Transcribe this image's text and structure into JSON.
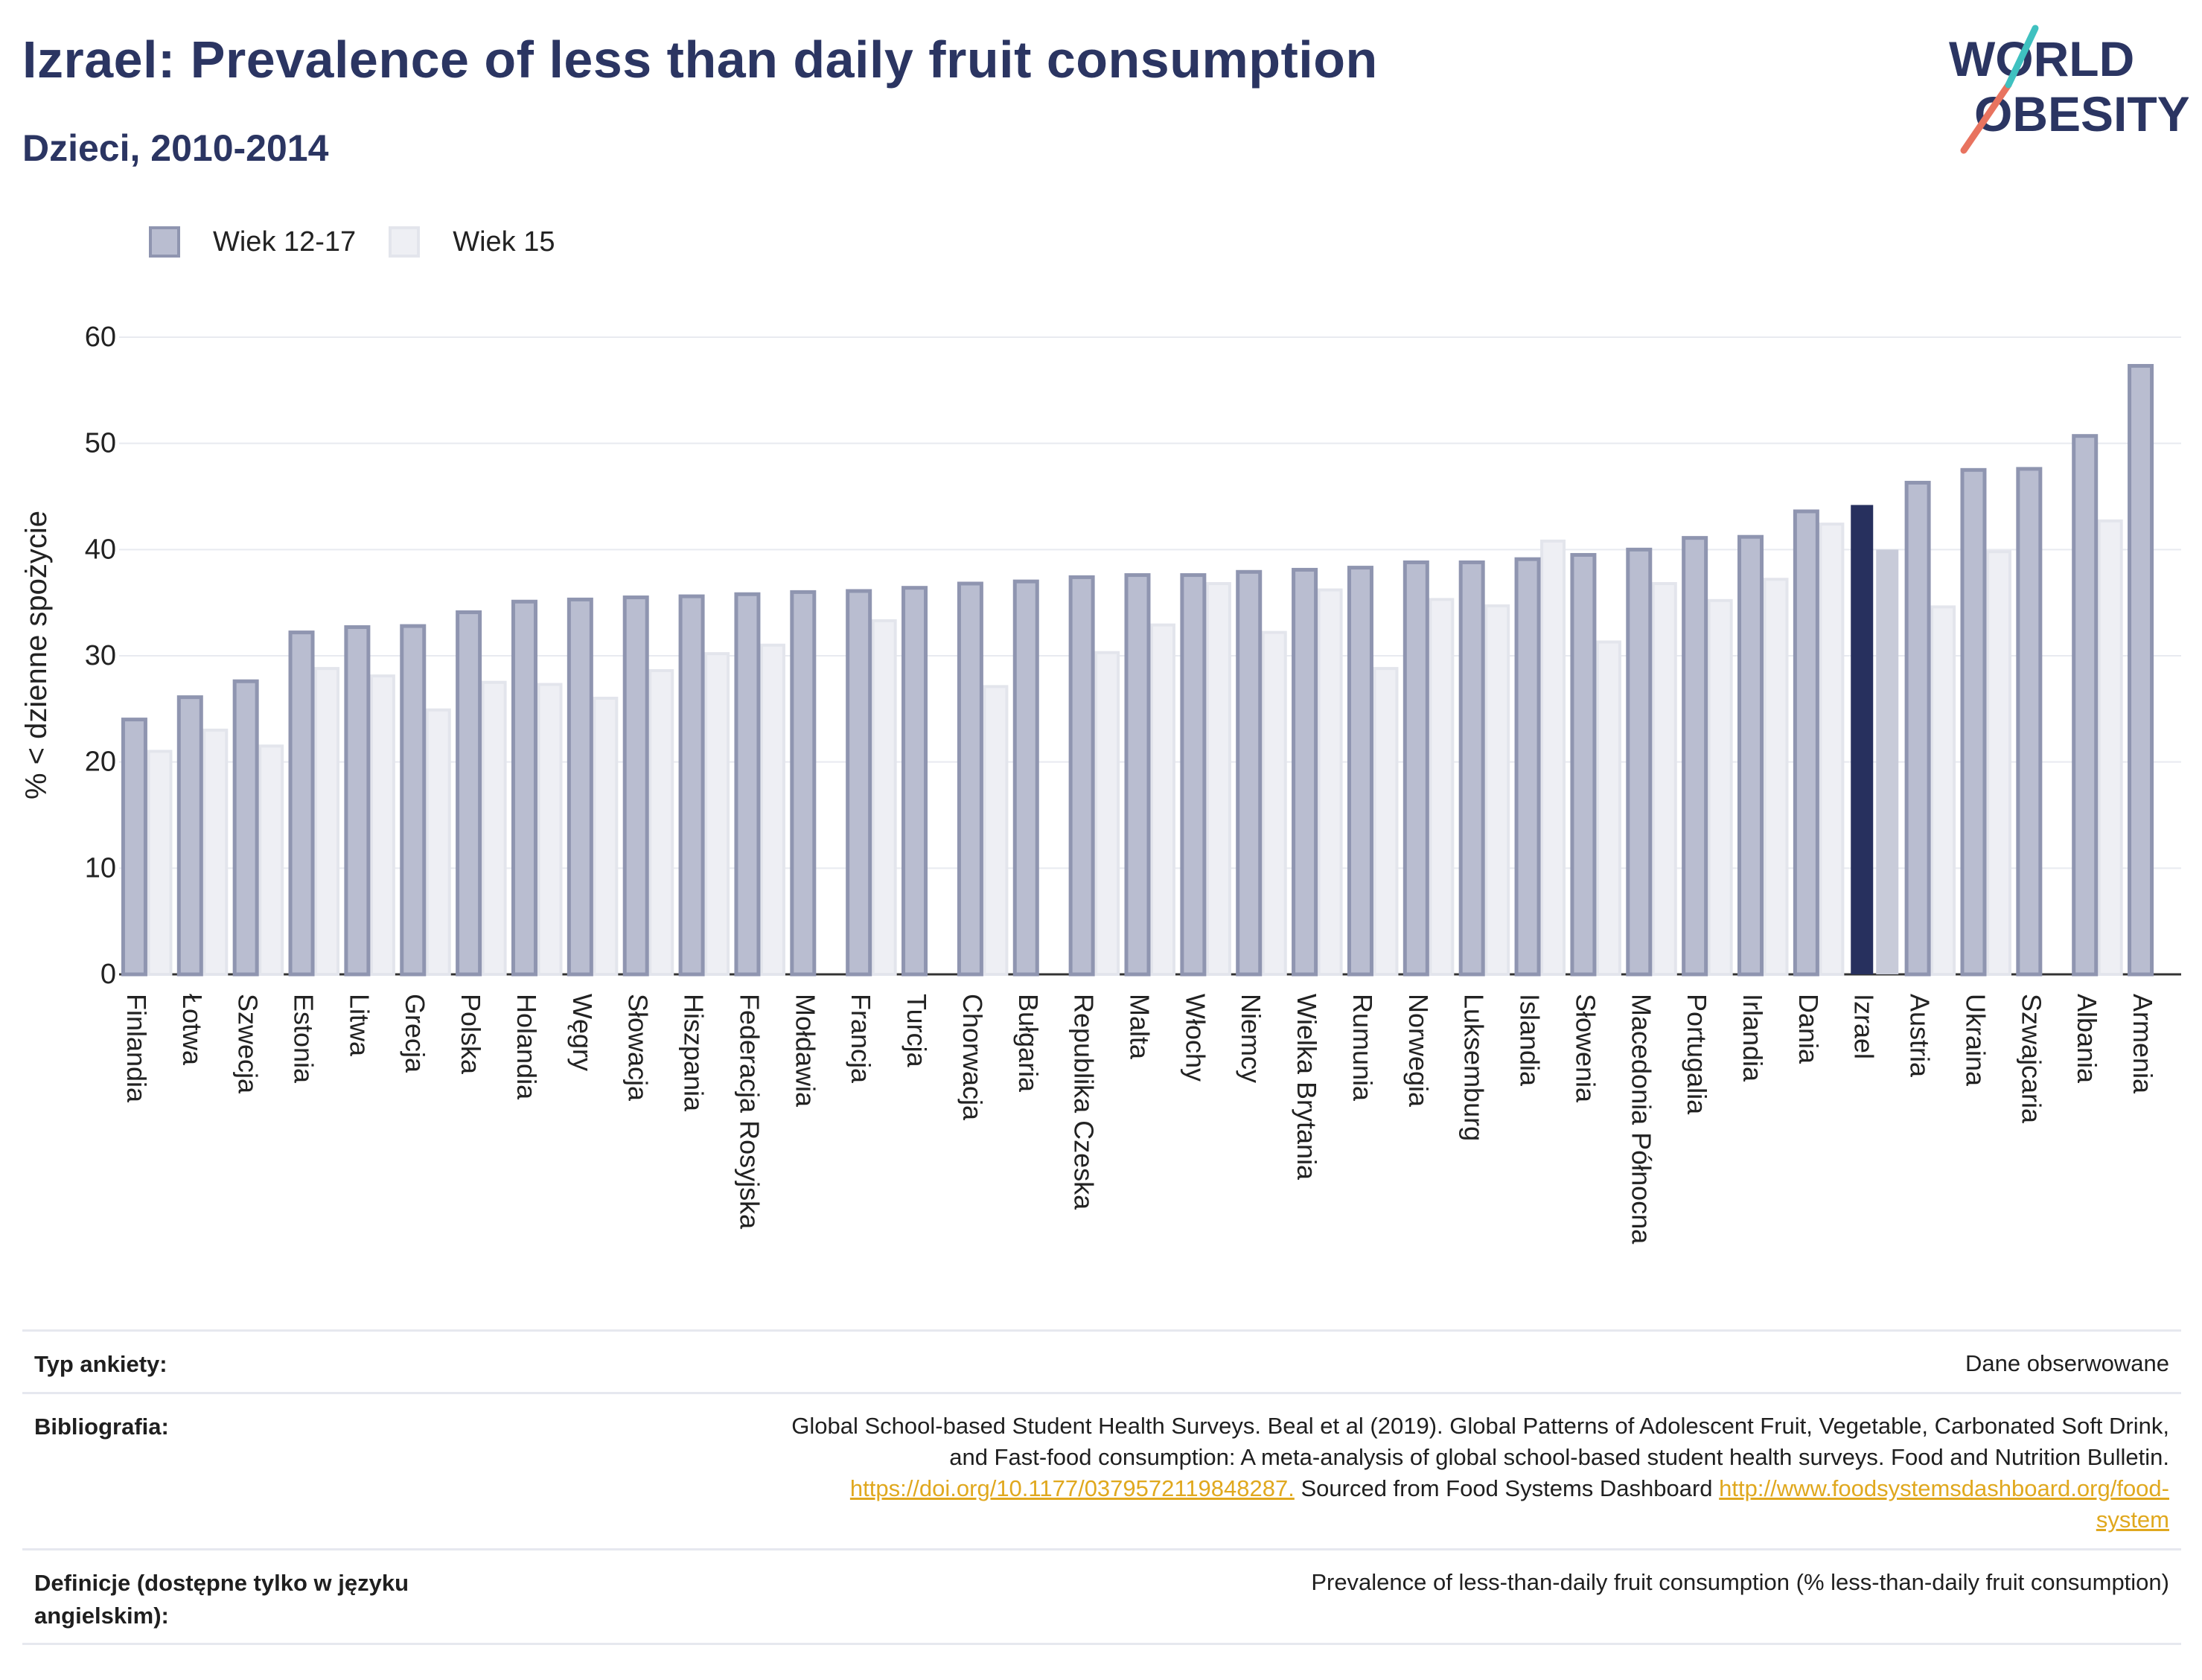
{
  "header": {
    "title": "Izrael: Prevalence of less than daily fruit consumption",
    "subtitle": "Dzieci, 2010-2014"
  },
  "logo": {
    "line1": "WORLD",
    "line2": "OBESITY"
  },
  "legend": {
    "series1": "Wiek 12-17",
    "series2": "Wiek 15"
  },
  "colors": {
    "series1_fill": "#b9bdd0",
    "series1_stroke": "#8f95b0",
    "series2_fill": "#eeeff4",
    "series2_stroke": "#e3e5ec",
    "highlight_fill": "#27305e",
    "highlight_series2_fill": "#c8cbd9",
    "text_dark": "#2b3562"
  },
  "chart_data": {
    "type": "bar",
    "ylabel": "% < dzienne spożycie",
    "ylim": [
      0,
      60
    ],
    "yticks": [
      0,
      10,
      20,
      30,
      40,
      50,
      60
    ],
    "grid": true,
    "legend_position": "top-left",
    "highlight": "Izrael",
    "categories": [
      "Finlandia",
      "Łotwa",
      "Szwecja",
      "Estonia",
      "Litwa",
      "Grecja",
      "Polska",
      "Holandia",
      "Węgry",
      "Słowacja",
      "Hiszpania",
      "Federacja Rosyjska",
      "Mołdawia",
      "Francja",
      "Turcja",
      "Chorwacja",
      "Bułgaria",
      "Republika Czeska",
      "Malta",
      "Włochy",
      "Niemcy",
      "Wielka Brytania",
      "Rumunia",
      "Norwegia",
      "Luksemburg",
      "Islandia",
      "Słowenia",
      "Macedonia Północna",
      "Portugalia",
      "Irlandia",
      "Dania",
      "Izrael",
      "Austria",
      "Ukraina",
      "Szwajcaria",
      "Albania",
      "Armenia"
    ],
    "series": [
      {
        "name": "Wiek 12-17",
        "values": [
          24.0,
          26.1,
          27.6,
          32.2,
          32.7,
          32.8,
          34.1,
          35.1,
          35.3,
          35.5,
          35.6,
          35.8,
          36.0,
          36.1,
          36.4,
          36.8,
          37.0,
          37.4,
          37.6,
          37.6,
          37.9,
          38.1,
          38.3,
          38.8,
          38.8,
          39.1,
          39.5,
          40.0,
          41.1,
          41.2,
          43.6,
          44.2,
          46.3,
          47.5,
          47.6,
          50.7,
          57.3
        ]
      },
      {
        "name": "Wiek 15",
        "values": [
          21.0,
          23.0,
          21.5,
          28.8,
          28.1,
          24.9,
          27.5,
          27.3,
          26.0,
          28.6,
          30.2,
          31.0,
          null,
          33.3,
          null,
          27.1,
          null,
          30.3,
          32.9,
          36.8,
          32.2,
          36.2,
          28.8,
          35.3,
          34.7,
          40.8,
          31.3,
          36.8,
          35.2,
          37.2,
          42.4,
          40.0,
          34.6,
          39.8,
          null,
          42.7,
          null
        ]
      }
    ]
  },
  "meta": {
    "survey_label": "Typ ankiety:",
    "survey_value": "Dane obserwowane",
    "biblio_label": "Bibliografia:",
    "biblio_line1": "Global School-based Student Health Surveys. Beal et al (2019). Global Patterns of Adolescent Fruit, Vegetable, Carbonated Soft Drink,",
    "biblio_line2": "and Fast-food consumption: A meta-analysis of global school-based student health surveys. Food and Nutrition Bulletin.",
    "biblio_link1": "https://doi.org/10.1177/0379572119848287.",
    "biblio_mid": " Sourced from Food Systems Dashboard ",
    "biblio_link2a": "http://www.foodsystemsdashboard.org/food-",
    "biblio_link2b": "system",
    "def_label_line1": "Definicje (dostępne tylko w języku",
    "def_label_line2": "angielskim):",
    "def_value": "Prevalence of less-than-daily fruit consumption (% less-than-daily fruit consumption)"
  }
}
